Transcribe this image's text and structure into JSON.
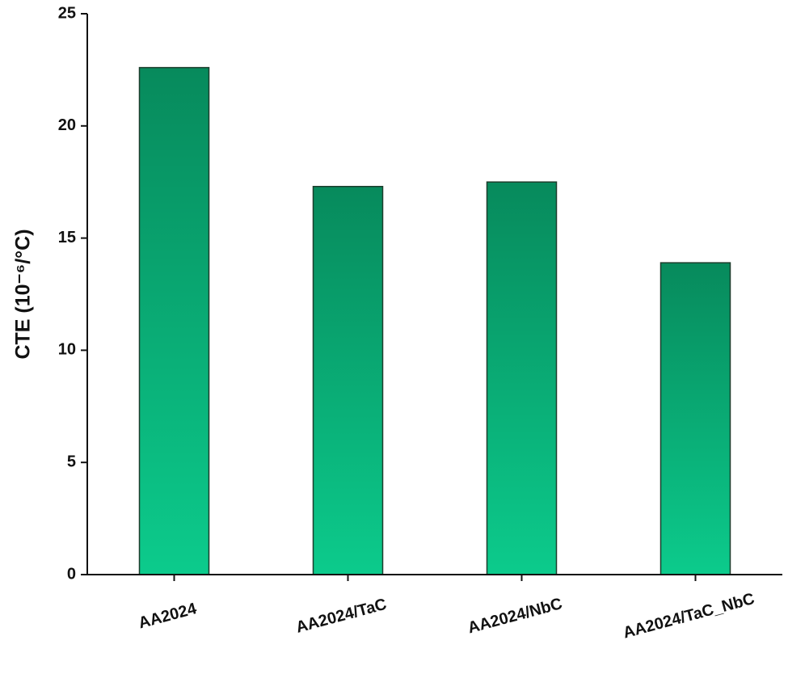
{
  "chart_data": {
    "type": "bar",
    "ylabel": "CTE (10⁻⁶/°C)",
    "categories": [
      "AA2024",
      "AA2024/TaC",
      "AA2024/NbC",
      "AA2024/TaC_NbC"
    ],
    "values": [
      22.6,
      17.3,
      17.5,
      13.9
    ],
    "gradient": [
      "#078a5c",
      "#0ccb8c"
    ],
    "ylim": [
      0,
      25
    ],
    "yticks": [
      0,
      5,
      10,
      15,
      20,
      25
    ]
  }
}
